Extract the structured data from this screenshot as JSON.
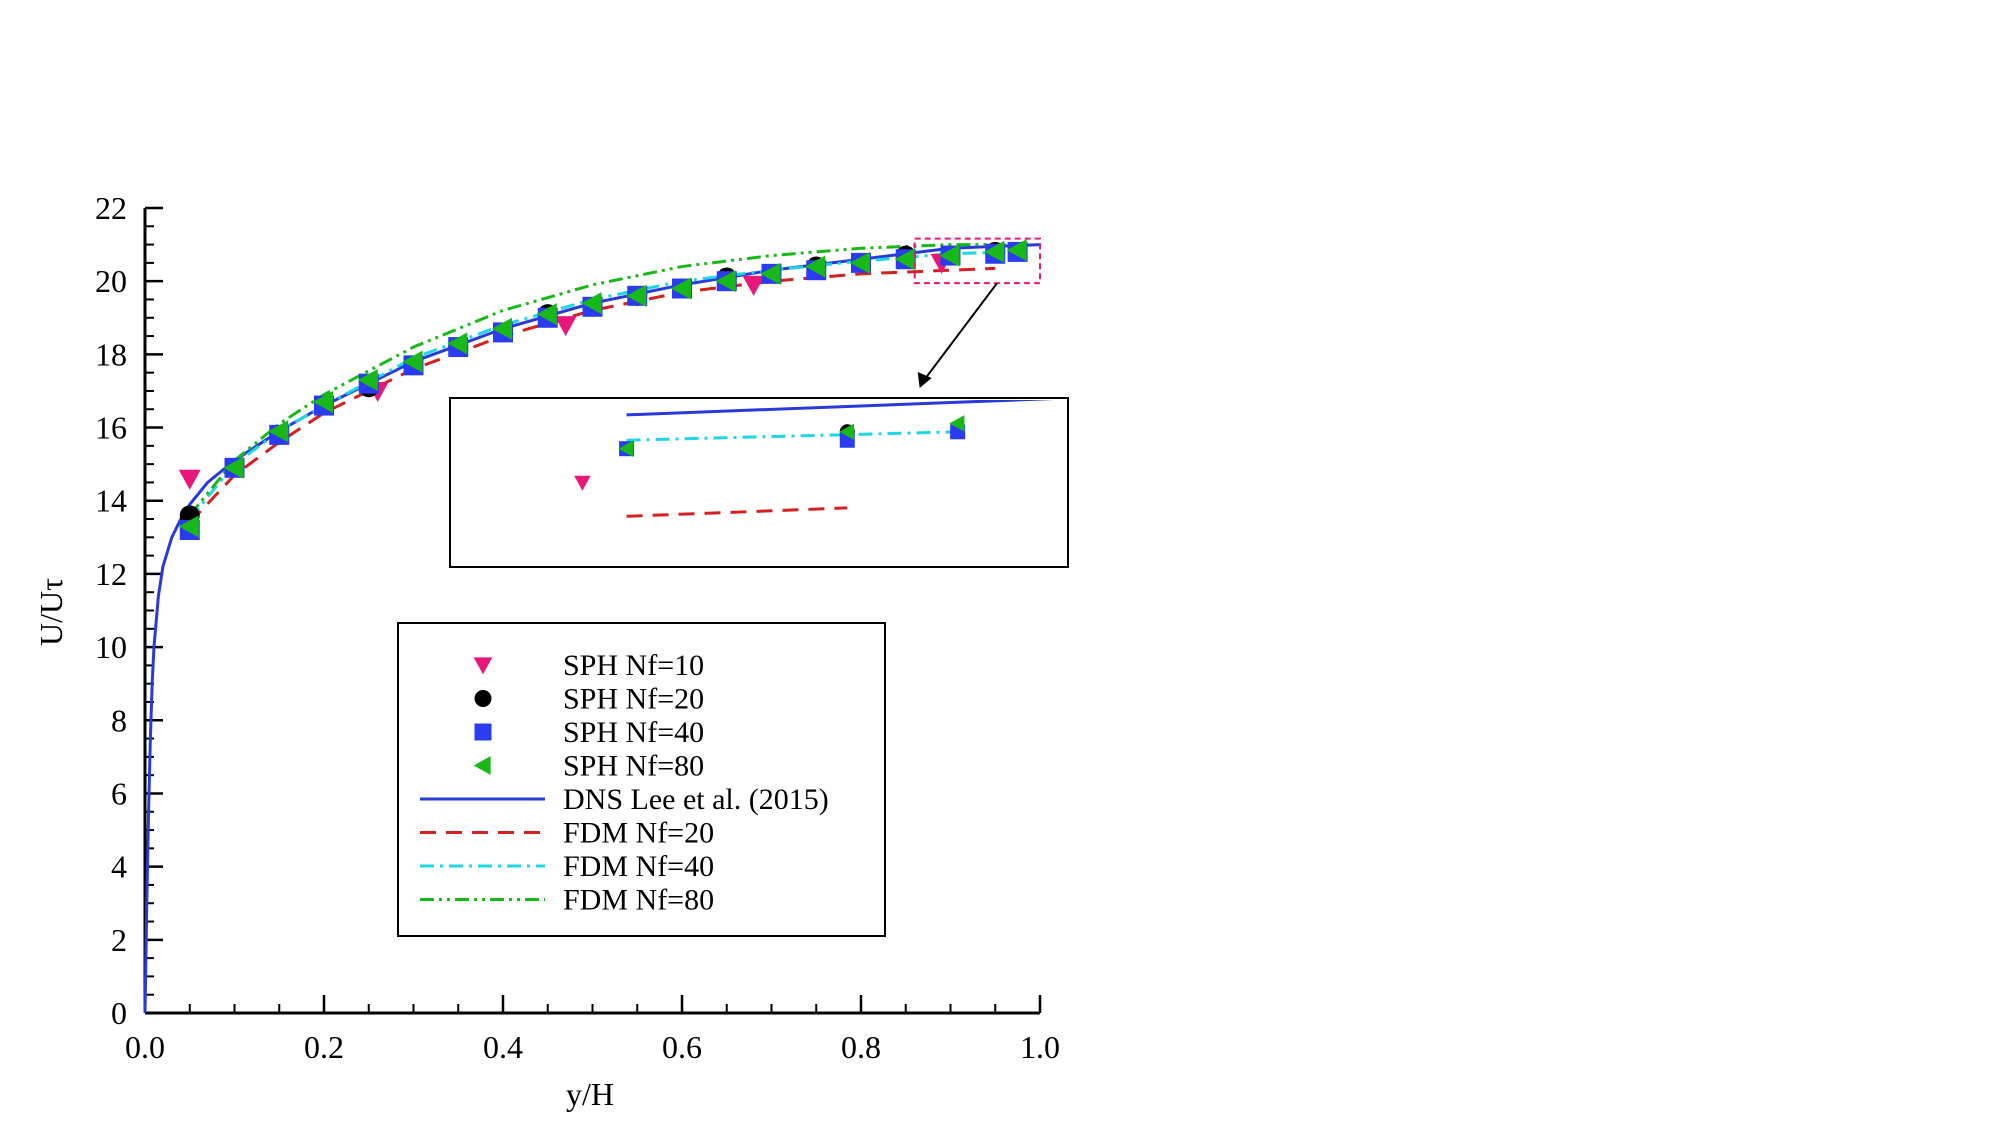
{
  "chart_data": {
    "type": "line",
    "title": "",
    "xlabel": "y/H",
    "ylabel": "U/Uτ",
    "xlim": [
      0,
      1
    ],
    "ylim": [
      0,
      22
    ],
    "xticks": [
      "0.0",
      "0.2",
      "0.4",
      "0.6",
      "0.8",
      "1.0"
    ],
    "yticks": [
      "0",
      "2",
      "4",
      "6",
      "8",
      "10",
      "12",
      "14",
      "16",
      "18",
      "20",
      "22"
    ],
    "grid": false,
    "legend_position": "center-right inside plot",
    "series": [
      {
        "name": "SPH Nf=10",
        "kind": "scatter",
        "marker": "triangle-down",
        "color": "#e8177a",
        "x": [
          0.05,
          0.26,
          0.47,
          0.68,
          0.89
        ],
        "y": [
          14.6,
          17.0,
          18.8,
          19.9,
          20.5
        ]
      },
      {
        "name": "SPH Nf=20",
        "kind": "scatter",
        "marker": "circle",
        "color": "#000000",
        "x": [
          0.05,
          0.15,
          0.25,
          0.35,
          0.45,
          0.55,
          0.65,
          0.75,
          0.85,
          0.95
        ],
        "y": [
          13.6,
          15.8,
          17.1,
          18.2,
          19.1,
          19.6,
          20.1,
          20.4,
          20.7,
          20.8
        ]
      },
      {
        "name": "SPH Nf=40",
        "kind": "scatter",
        "marker": "square",
        "color": "#2b3cf0",
        "x": [
          0.05,
          0.1,
          0.15,
          0.2,
          0.25,
          0.3,
          0.35,
          0.4,
          0.45,
          0.5,
          0.55,
          0.6,
          0.65,
          0.7,
          0.75,
          0.8,
          0.85,
          0.9,
          0.95,
          0.975
        ],
        "y": [
          13.2,
          14.9,
          15.8,
          16.6,
          17.2,
          17.7,
          18.2,
          18.6,
          19.0,
          19.3,
          19.6,
          19.8,
          20.0,
          20.2,
          20.3,
          20.5,
          20.6,
          20.7,
          20.75,
          20.8
        ]
      },
      {
        "name": "SPH Nf=80",
        "kind": "scatter",
        "marker": "triangle-left",
        "color": "#18b818",
        "x": [
          0.05,
          0.1,
          0.15,
          0.2,
          0.25,
          0.3,
          0.35,
          0.4,
          0.45,
          0.5,
          0.55,
          0.6,
          0.65,
          0.7,
          0.75,
          0.8,
          0.85,
          0.9,
          0.95,
          0.975
        ],
        "y": [
          13.3,
          14.9,
          15.9,
          16.7,
          17.3,
          17.8,
          18.3,
          18.7,
          19.1,
          19.4,
          19.6,
          19.8,
          20.0,
          20.2,
          20.4,
          20.5,
          20.6,
          20.7,
          20.8,
          20.85
        ]
      },
      {
        "name": "DNS Lee et al. (2015)",
        "kind": "line",
        "dash": "",
        "color": "#2a3ad8",
        "width": 3,
        "x": [
          0.0,
          0.002,
          0.004,
          0.006,
          0.008,
          0.01,
          0.015,
          0.02,
          0.03,
          0.04,
          0.05,
          0.07,
          0.1,
          0.15,
          0.2,
          0.3,
          0.4,
          0.5,
          0.6,
          0.7,
          0.8,
          0.9,
          1.0
        ],
        "y": [
          0.0,
          3.0,
          5.5,
          7.5,
          9.0,
          10.0,
          11.4,
          12.2,
          13.0,
          13.5,
          13.9,
          14.5,
          15.1,
          15.9,
          16.6,
          17.8,
          18.7,
          19.4,
          19.9,
          20.3,
          20.6,
          20.9,
          21.0
        ]
      },
      {
        "name": "FDM Nf=20",
        "kind": "line",
        "dash": "16,10",
        "color": "#d42020",
        "width": 3,
        "x": [
          0.05,
          0.1,
          0.15,
          0.2,
          0.3,
          0.4,
          0.5,
          0.6,
          0.7,
          0.8,
          0.9,
          0.95
        ],
        "y": [
          13.4,
          14.7,
          15.6,
          16.4,
          17.6,
          18.5,
          19.2,
          19.7,
          20.0,
          20.2,
          20.3,
          20.35
        ]
      },
      {
        "name": "FDM Nf=40",
        "kind": "line",
        "dash": "14,6,3,6",
        "color": "#1fd6e6",
        "width": 3,
        "x": [
          0.05,
          0.1,
          0.15,
          0.2,
          0.3,
          0.4,
          0.5,
          0.6,
          0.7,
          0.8,
          0.9,
          0.975
        ],
        "y": [
          13.5,
          15.0,
          15.9,
          16.6,
          17.9,
          18.8,
          19.5,
          20.0,
          20.3,
          20.55,
          20.75,
          20.8
        ]
      },
      {
        "name": "FDM Nf=80",
        "kind": "line",
        "dash": "14,5,3,5,3,5",
        "color": "#18b818",
        "width": 3,
        "x": [
          0.05,
          0.1,
          0.15,
          0.2,
          0.3,
          0.4,
          0.5,
          0.6,
          0.7,
          0.8,
          0.9,
          0.975
        ],
        "y": [
          13.6,
          15.1,
          16.1,
          16.9,
          18.2,
          19.2,
          19.9,
          20.4,
          20.7,
          20.9,
          21.0,
          21.0
        ]
      }
    ],
    "inset": {
      "zoom_xlim": [
        0.86,
        1.0
      ],
      "zoom_ylim": [
        20.0,
        21.0
      ],
      "arrow": true
    }
  }
}
